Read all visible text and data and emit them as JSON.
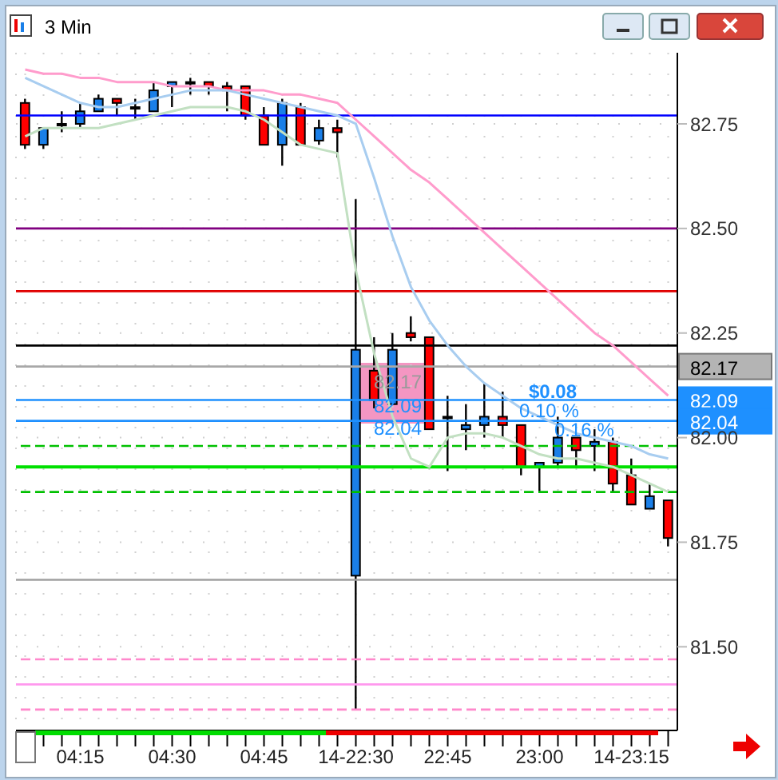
{
  "chart_data": {
    "type": "candlestick",
    "title": "3 Min",
    "categories": [
      null,
      null,
      null,
      "04:15",
      null,
      null,
      null,
      null,
      "04:30",
      null,
      null,
      null,
      null,
      "04:45",
      null,
      null,
      null,
      null,
      "14-22:30",
      null,
      null,
      null,
      null,
      "22:45",
      null,
      null,
      null,
      null,
      "23:00",
      null,
      null,
      null,
      null,
      "14-23:15",
      null,
      null
    ],
    "ohlc": [
      [
        82.8,
        82.81,
        82.69,
        82.7
      ],
      [
        82.7,
        82.74,
        82.69,
        82.74
      ],
      [
        82.75,
        82.78,
        82.73,
        82.75
      ],
      [
        82.75,
        82.8,
        82.74,
        82.78
      ],
      [
        82.78,
        82.82,
        82.78,
        82.81
      ],
      [
        82.81,
        82.81,
        82.77,
        82.8
      ],
      [
        82.79,
        82.81,
        82.76,
        82.79
      ],
      [
        82.78,
        82.85,
        82.78,
        82.83
      ],
      [
        82.84,
        82.85,
        82.79,
        82.85
      ],
      [
        82.85,
        82.86,
        82.82,
        82.85
      ],
      [
        82.85,
        82.85,
        82.82,
        82.84
      ],
      [
        82.84,
        82.85,
        82.78,
        82.83
      ],
      [
        82.84,
        82.84,
        82.76,
        82.77
      ],
      [
        82.77,
        82.79,
        82.7,
        82.7
      ],
      [
        82.7,
        82.81,
        82.65,
        82.8
      ],
      [
        82.79,
        82.8,
        82.7,
        82.7
      ],
      [
        82.71,
        82.76,
        82.7,
        82.74
      ],
      [
        82.74,
        82.76,
        82.67,
        82.73
      ],
      [
        81.67,
        82.57,
        81.35,
        82.21
      ],
      [
        82.16,
        82.24,
        82.07,
        82.09
      ],
      [
        82.08,
        82.25,
        82.08,
        82.21
      ],
      [
        82.25,
        82.29,
        82.23,
        82.24
      ],
      [
        82.24,
        82.24,
        82.02,
        82.02
      ],
      [
        82.05,
        82.1,
        81.92,
        82.05
      ],
      [
        82.02,
        82.08,
        81.97,
        82.03
      ],
      [
        82.03,
        82.13,
        82.0,
        82.05
      ],
      [
        82.05,
        82.11,
        82.0,
        82.03
      ],
      [
        82.03,
        82.03,
        81.91,
        81.93
      ],
      [
        81.93,
        81.94,
        81.87,
        81.94
      ],
      [
        81.94,
        82.05,
        81.93,
        82.0
      ],
      [
        82.0,
        82.0,
        81.93,
        81.97
      ],
      [
        81.98,
        82.02,
        81.92,
        81.99
      ],
      [
        81.99,
        82.0,
        81.87,
        81.89
      ],
      [
        81.91,
        81.95,
        81.84,
        81.84
      ],
      [
        81.83,
        81.89,
        81.83,
        81.86
      ],
      [
        81.85,
        81.85,
        81.74,
        81.76
      ]
    ],
    "colors": [
      "#ff0000",
      "#1a7fe8",
      "#1a7fe8",
      "#1a7fe8",
      "#1a7fe8",
      "#ff0000",
      "#1a7fe8",
      "#1a7fe8",
      "#1a7fe8",
      "#1a7fe8",
      "#ff0000",
      "#ff0000",
      "#ff0000",
      "#ff0000",
      "#1a7fe8",
      "#ff0000",
      "#1a7fe8",
      "#ff0000",
      "#1a7fe8",
      "#ff0000",
      "#1a7fe8",
      "#ff0000",
      "#ff0000",
      "#1a7fe8",
      "#1a7fe8",
      "#1a7fe8",
      "#ff0000",
      "#ff0000",
      "#1a7fe8",
      "#1a7fe8",
      "#ff0000",
      "#1a7fe8",
      "#ff0000",
      "#ff0000",
      "#1a7fe8",
      "#ff0000"
    ],
    "series": [
      {
        "type": "line",
        "color": "#ff9ccc",
        "values": [
          82.88,
          82.87,
          82.87,
          82.86,
          82.86,
          82.85,
          82.85,
          82.85,
          82.84,
          82.84,
          82.84,
          82.83,
          82.83,
          82.83,
          82.82,
          82.82,
          82.81,
          82.8,
          82.76,
          82.72,
          82.68,
          82.64,
          82.61,
          82.57,
          82.53,
          82.49,
          82.45,
          82.41,
          82.37,
          82.33,
          82.29,
          82.25,
          82.22,
          82.18,
          82.14,
          82.1
        ]
      },
      {
        "type": "line",
        "color": "#a8cdf0",
        "values": [
          82.86,
          82.84,
          82.82,
          82.8,
          82.79,
          82.79,
          82.8,
          82.81,
          82.82,
          82.83,
          82.83,
          82.83,
          82.82,
          82.81,
          82.8,
          82.79,
          82.78,
          82.77,
          82.75,
          82.62,
          82.48,
          82.36,
          82.28,
          82.22,
          82.17,
          82.13,
          82.1,
          82.07,
          82.05,
          82.03,
          82.01,
          82.0,
          81.99,
          81.98,
          81.96,
          81.95
        ]
      },
      {
        "type": "line",
        "color": "#c2e0c2",
        "values": [
          82.72,
          82.74,
          82.74,
          82.74,
          82.74,
          82.75,
          82.76,
          82.77,
          82.78,
          82.79,
          82.79,
          82.79,
          82.78,
          82.76,
          82.73,
          82.7,
          82.69,
          82.68,
          82.4,
          82.2,
          82.05,
          81.95,
          81.93,
          82.0,
          82.01,
          82.01,
          82.0,
          81.98,
          81.96,
          81.95,
          81.95,
          81.94,
          81.93,
          81.91,
          81.89,
          81.87
        ]
      }
    ],
    "ylim": [
      81.3,
      82.92
    ],
    "yticks": [
      {
        "value": 81.5,
        "label": "81.50"
      },
      {
        "value": 81.75,
        "label": "81.75"
      },
      {
        "value": 82,
        "label": "82.00"
      },
      {
        "value": 82.25,
        "label": "82.25"
      },
      {
        "value": 82.5,
        "label": "82.50"
      },
      {
        "value": 82.75,
        "label": "82.75"
      }
    ],
    "ref_lines": [
      {
        "axis": "y",
        "value": 82.77,
        "color": "#0000ff",
        "line_style": "solid"
      },
      {
        "axis": "y",
        "value": 82.5,
        "color": "#800080",
        "line_style": "solid"
      },
      {
        "axis": "y",
        "value": 82.35,
        "color": "#e00000",
        "line_style": "solid"
      },
      {
        "axis": "y",
        "value": 82.22,
        "color": "#000000",
        "line_style": "solid"
      },
      {
        "axis": "y",
        "value": 82.17,
        "color": "#a8a8a8",
        "line_style": "solid",
        "label": "82.17"
      },
      {
        "axis": "y",
        "value": 82.09,
        "color": "#1e90ff",
        "line_style": "solid",
        "label": "82.09"
      },
      {
        "axis": "y",
        "value": 82.04,
        "color": "#1e90ff",
        "line_style": "solid",
        "label": "82.04"
      },
      {
        "axis": "y",
        "value": 81.98,
        "color": "#00c000",
        "line_style": "dashed"
      },
      {
        "axis": "y",
        "value": 81.93,
        "color": "#00e000",
        "line_style": "solid"
      },
      {
        "axis": "y",
        "value": 81.87,
        "color": "#00c000",
        "line_style": "dashed"
      },
      {
        "axis": "y",
        "value": 81.66,
        "color": "#a0a0a0",
        "line_style": "solid"
      },
      {
        "axis": "y",
        "value": 81.47,
        "color": "#ff88cc",
        "line_style": "dashed"
      },
      {
        "axis": "y",
        "value": 81.41,
        "color": "#ff99ee",
        "line_style": "solid"
      },
      {
        "axis": "y",
        "value": 81.35,
        "color": "#ff88cc",
        "line_style": "dashed"
      }
    ],
    "annotations": [
      "82.17",
      "82.09",
      "82.04",
      "$0.08",
      "0.10 %",
      "0.16 %"
    ],
    "grid": true,
    "legend": false
  }
}
